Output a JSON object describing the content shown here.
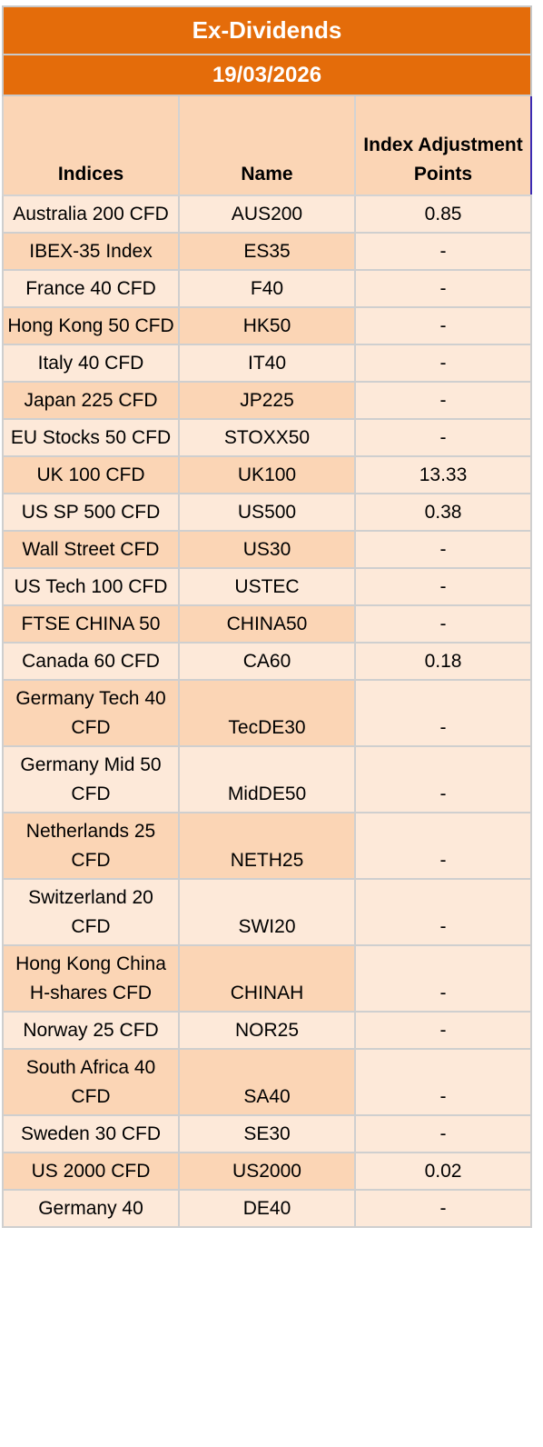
{
  "title": "Ex-Dividends",
  "date": "19/03/2026",
  "columns": [
    "Indices",
    "Name",
    "Index Adjustment Points"
  ],
  "rows": [
    {
      "index": "Australia 200 CFD",
      "name": "AUS200",
      "points": "0.85"
    },
    {
      "index": "IBEX-35 Index",
      "name": "ES35",
      "points": "-"
    },
    {
      "index": "France 40 CFD",
      "name": "F40",
      "points": "-"
    },
    {
      "index": "Hong Kong 50 CFD",
      "name": "HK50",
      "points": "-"
    },
    {
      "index": "Italy 40 CFD",
      "name": "IT40",
      "points": "-"
    },
    {
      "index": "Japan 225 CFD",
      "name": "JP225",
      "points": "-"
    },
    {
      "index": "EU Stocks 50 CFD",
      "name": "STOXX50",
      "points": "-"
    },
    {
      "index": "UK 100 CFD",
      "name": "UK100",
      "points": "13.33"
    },
    {
      "index": "US SP 500 CFD",
      "name": "US500",
      "points": "0.38"
    },
    {
      "index": "Wall Street CFD",
      "name": "US30",
      "points": "-"
    },
    {
      "index": "US Tech 100 CFD",
      "name": "USTEC",
      "points": "-"
    },
    {
      "index": "FTSE CHINA 50",
      "name": "CHINA50",
      "points": "-"
    },
    {
      "index": "Canada 60 CFD",
      "name": "CA60",
      "points": "0.18"
    },
    {
      "index": "Germany Tech 40 CFD",
      "name": "TecDE30",
      "points": "-"
    },
    {
      "index": "Germany Mid 50 CFD",
      "name": "MidDE50",
      "points": "-"
    },
    {
      "index": "Netherlands 25 CFD",
      "name": "NETH25",
      "points": "-"
    },
    {
      "index": "Switzerland 20 CFD",
      "name": "SWI20",
      "points": "-"
    },
    {
      "index": "Hong Kong China H-shares CFD",
      "name": "CHINAH",
      "points": "-"
    },
    {
      "index": "Norway 25 CFD",
      "name": "NOR25",
      "points": "-"
    },
    {
      "index": "South Africa 40 CFD",
      "name": "SA40",
      "points": "-"
    },
    {
      "index": "Sweden 30 CFD",
      "name": "SE30",
      "points": "-"
    },
    {
      "index": "US 2000 CFD",
      "name": "US2000",
      "points": "0.02"
    },
    {
      "index": "Germany 40",
      "name": "DE40",
      "points": "-"
    }
  ]
}
